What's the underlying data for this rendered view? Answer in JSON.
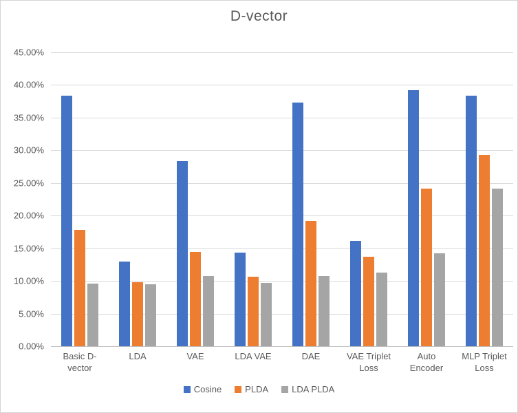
{
  "chart_data": {
    "type": "bar",
    "title": "D-vector",
    "categories": [
      "Basic D-vector",
      "LDA",
      "VAE",
      "LDA VAE",
      "DAE",
      "VAE Triplet Loss",
      "Auto Encoder",
      "MLP Triplet Loss"
    ],
    "series": [
      {
        "name": "Cosine",
        "color": "#4472C4",
        "values": [
          38.4,
          13.0,
          28.4,
          14.3,
          37.3,
          16.1,
          39.2,
          38.4
        ]
      },
      {
        "name": "PLDA",
        "color": "#ED7D31",
        "values": [
          17.8,
          9.8,
          14.4,
          10.6,
          19.2,
          13.7,
          24.1,
          29.3
        ]
      },
      {
        "name": "LDA PLDA",
        "color": "#A5A5A5",
        "values": [
          9.6,
          9.5,
          10.7,
          9.7,
          10.8,
          11.3,
          14.2,
          24.1
        ]
      }
    ],
    "xlabel": "",
    "ylabel": "",
    "ylim": [
      0,
      45
    ],
    "y_ticks": [
      "45.00%",
      "40.00%",
      "35.00%",
      "30.00%",
      "25.00%",
      "20.00%",
      "15.00%",
      "10.00%",
      "5.00%",
      "0.00%"
    ],
    "grid": true,
    "legend_position": "bottom",
    "colors": {
      "title_text": "#595959",
      "axis_text": "#595959",
      "gridline": "#D9D9D9",
      "axis_line": "#BFBFBF",
      "background": "#FFFFFF"
    }
  }
}
